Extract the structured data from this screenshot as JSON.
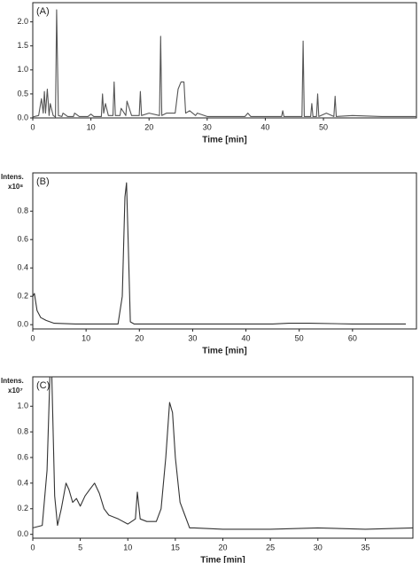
{
  "chart_data": [
    {
      "type": "line",
      "label": "(A)",
      "x_label": "Time [min]",
      "xlim": [
        0,
        66
      ],
      "xticks": [
        0,
        10,
        20,
        30,
        40,
        50
      ],
      "ylim": [
        0,
        2.4
      ],
      "yticks": [
        {
          "value": 0,
          "label": "0.0"
        },
        0.5,
        {
          "value": 1,
          "label": "1.0"
        },
        1.5,
        {
          "value": 2,
          "label": "2.0"
        }
      ],
      "series": [
        {
          "color": "#555555",
          "x": [
            0,
            1,
            1.5,
            1.8,
            2,
            2.2,
            2.5,
            2.8,
            3,
            3.5,
            3.9,
            4.1,
            4.4,
            5,
            5.2,
            6,
            7,
            7.2,
            8,
            9.5,
            10,
            10.5,
            11.8,
            12,
            12.2,
            12.5,
            13,
            13.8,
            14,
            14.2,
            15,
            15.2,
            16,
            16.2,
            17,
            18.3,
            18.5,
            18.7,
            20,
            21.8,
            22,
            22.2,
            23,
            24.5,
            25,
            25.5,
            26,
            26.3,
            27,
            28,
            28.3,
            30,
            36.5,
            37,
            37.5,
            42.8,
            43,
            43.2,
            46.3,
            46.5,
            46.7,
            47.8,
            48,
            48.2,
            48.8,
            49,
            49.2,
            50.5,
            51.8,
            52,
            52.2,
            55,
            60,
            66
          ],
          "values": [
            0.02,
            0.05,
            0.4,
            0.1,
            0.55,
            0.1,
            0.6,
            0.05,
            0.3,
            0.05,
            0.02,
            2.25,
            0.05,
            0.03,
            0.1,
            0.03,
            0.03,
            0.1,
            0.03,
            0.03,
            0.08,
            0.03,
            0.03,
            0.5,
            0.1,
            0.3,
            0.05,
            0.05,
            0.75,
            0.05,
            0.05,
            0.2,
            0.05,
            0.35,
            0.05,
            0.05,
            0.55,
            0.05,
            0.1,
            0.05,
            1.7,
            0.05,
            0.1,
            0.1,
            0.6,
            0.75,
            0.75,
            0.1,
            0.15,
            0.05,
            0.1,
            0.03,
            0.03,
            0.1,
            0.03,
            0.03,
            0.15,
            0.03,
            0.03,
            1.6,
            0.03,
            0.03,
            0.3,
            0.03,
            0.03,
            0.5,
            0.03,
            0.1,
            0.03,
            0.45,
            0.03,
            0.05,
            0.03,
            0.03
          ]
        }
      ]
    },
    {
      "type": "line",
      "label": "(B)",
      "x_label": "Time [min]",
      "y_label": "Intens.",
      "y_unit": "x10⁸",
      "xlim": [
        0,
        72
      ],
      "xticks": [
        0,
        10,
        20,
        30,
        40,
        50,
        60
      ],
      "ylim": [
        -0.03,
        1.07
      ],
      "yticks": [
        {
          "value": 0,
          "label": "0.0"
        },
        0.2,
        0.4,
        0.6,
        0.8
      ],
      "series": [
        {
          "color": "#333333",
          "x": [
            0,
            0.3,
            0.8,
            1.5,
            2.5,
            4,
            8,
            16,
            16.8,
            17.3,
            17.6,
            17.9,
            18.3,
            19,
            30,
            45,
            48,
            52,
            60,
            70
          ],
          "values": [
            0.2,
            0.22,
            0.1,
            0.05,
            0.03,
            0.01,
            0.005,
            0.005,
            0.2,
            0.9,
            1.0,
            0.6,
            0.02,
            0.005,
            0.005,
            0.005,
            0.01,
            0.01,
            0.005,
            0.005
          ]
        }
      ]
    },
    {
      "type": "line",
      "label": "(C)",
      "x_label": "Time [min]",
      "y_label": "Intens.",
      "y_unit": "x10⁷",
      "xlim": [
        0,
        40
      ],
      "xticks": [
        0,
        5,
        10,
        15,
        20,
        25,
        30,
        35
      ],
      "ylim": [
        -0.03,
        1.23
      ],
      "yticks": [
        {
          "value": 0,
          "label": "0.0"
        },
        0.2,
        0.4,
        0.6,
        0.8,
        {
          "value": 1,
          "label": "1.0"
        }
      ],
      "series": [
        {
          "color": "#333333",
          "x": [
            0,
            1,
            1.5,
            1.8,
            2,
            2.3,
            2.6,
            3,
            3.5,
            3.8,
            4.2,
            4.6,
            5,
            5.5,
            6,
            6.5,
            7,
            7.5,
            8,
            9,
            10,
            10.8,
            11,
            11.3,
            12,
            13,
            13.5,
            14,
            14.4,
            14.7,
            15,
            15.5,
            16,
            16.5,
            17,
            20,
            25,
            30,
            35,
            40
          ],
          "values": [
            0.05,
            0.07,
            0.5,
            1.23,
            1.23,
            0.3,
            0.07,
            0.2,
            0.4,
            0.35,
            0.25,
            0.28,
            0.22,
            0.3,
            0.35,
            0.4,
            0.32,
            0.2,
            0.15,
            0.12,
            0.08,
            0.12,
            0.33,
            0.12,
            0.1,
            0.1,
            0.2,
            0.6,
            1.03,
            0.95,
            0.6,
            0.25,
            0.15,
            0.05,
            0.05,
            0.04,
            0.04,
            0.05,
            0.04,
            0.05
          ]
        }
      ]
    }
  ]
}
